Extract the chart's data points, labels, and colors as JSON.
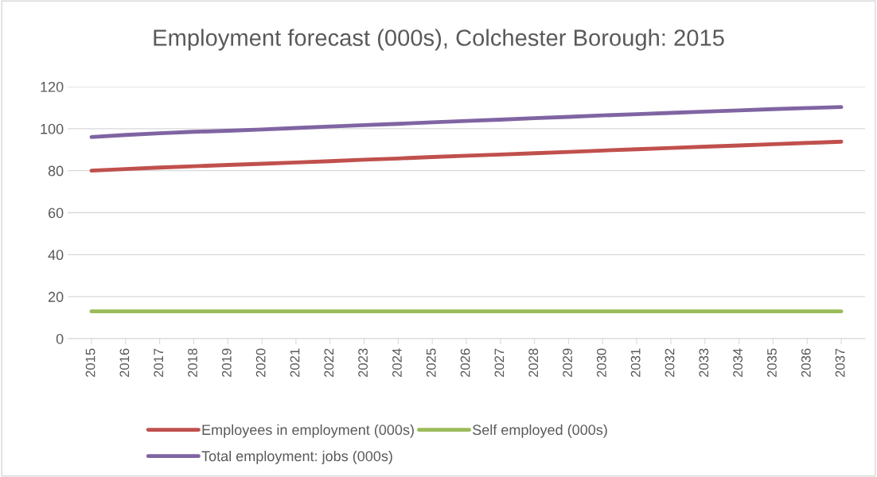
{
  "chart_data": {
    "type": "line",
    "title": "Employment forecast (000s), Colchester Borough: 2015",
    "categories": [
      "2015",
      "2016",
      "2017",
      "2018",
      "2019",
      "2020",
      "2021",
      "2022",
      "2023",
      "2024",
      "2025",
      "2026",
      "2027",
      "2028",
      "2029",
      "2030",
      "2031",
      "2032",
      "2033",
      "2034",
      "2035",
      "2036",
      "2037"
    ],
    "series": [
      {
        "name": "Employees in employment (000s)",
        "color": "#c0504d",
        "values": [
          80,
          80.8,
          81.5,
          82.1,
          82.7,
          83.3,
          83.9,
          84.5,
          85.2,
          85.8,
          86.5,
          87.1,
          87.7,
          88.3,
          88.9,
          89.6,
          90.2,
          90.8,
          91.4,
          92,
          92.6,
          93.2,
          93.8
        ]
      },
      {
        "name": "Self employed (000s)",
        "color": "#9bbb59",
        "values": [
          13,
          13,
          13,
          13,
          13,
          13,
          13,
          13,
          13,
          13,
          13,
          13,
          13,
          13,
          13,
          13,
          13,
          13,
          13,
          13,
          13,
          13,
          13
        ]
      },
      {
        "name": "Total employment: jobs (000s)",
        "color": "#8064a2",
        "values": [
          96,
          97,
          97.8,
          98.5,
          99,
          99.6,
          100.3,
          101,
          101.7,
          102.3,
          103,
          103.7,
          104.3,
          105,
          105.6,
          106.3,
          106.9,
          107.5,
          108.1,
          108.7,
          109.3,
          109.8,
          110.3
        ]
      }
    ],
    "ylim": [
      0,
      120
    ],
    "yticks": [
      0,
      20,
      40,
      60,
      80,
      100,
      120
    ],
    "grid": "y",
    "legend": "bottom"
  }
}
